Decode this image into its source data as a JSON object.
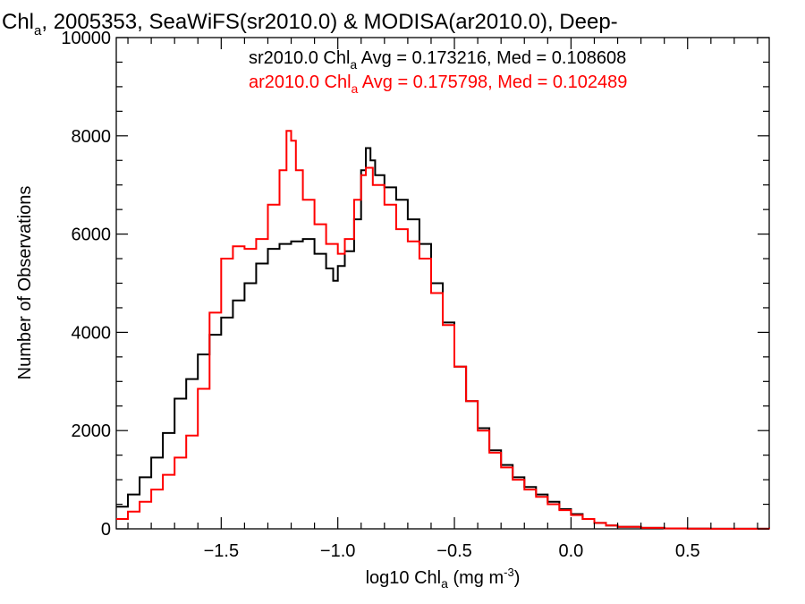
{
  "chart_data": {
    "type": "line",
    "step": true,
    "title": {
      "prefix": "Chl",
      "sub": "a",
      "suffix": ", 2005353, SeaWiFS(sr2010.0) & MODISA(ar2010.0), Deep-"
    },
    "xlabel": {
      "prefix": "log10 Chl",
      "sub": "a",
      "mid": " (mg m",
      "sup": "-3",
      "suffix": ")"
    },
    "ylabel": "Number of Observations",
    "xlim": [
      -1.95,
      0.85
    ],
    "ylim": [
      0,
      10000
    ],
    "xticks": [
      -1.5,
      -1.0,
      -0.5,
      0.0,
      0.5
    ],
    "xtick_labels": [
      "−1.5",
      "−1.0",
      "−0.5",
      "0.0",
      "0.5"
    ],
    "yticks": [
      0,
      2000,
      4000,
      6000,
      8000,
      10000
    ],
    "ytick_labels": [
      "0",
      "2000",
      "4000",
      "6000",
      "8000",
      "10000"
    ],
    "grid": false,
    "legend_position": "top-right",
    "series": [
      {
        "color": "#000000",
        "legend": {
          "prefix": "sr2010.0 Chl",
          "sub": "a",
          "suffix": " Avg = 0.173216, Med = 0.108608"
        },
        "x": [
          -1.95,
          -1.9,
          -1.85,
          -1.8,
          -1.75,
          -1.7,
          -1.65,
          -1.6,
          -1.55,
          -1.5,
          -1.45,
          -1.4,
          -1.35,
          -1.3,
          -1.25,
          -1.2,
          -1.15,
          -1.1,
          -1.05,
          -1.02,
          -1.0,
          -0.97,
          -0.93,
          -0.9,
          -0.88,
          -0.86,
          -0.84,
          -0.8,
          -0.75,
          -0.7,
          -0.65,
          -0.6,
          -0.55,
          -0.5,
          -0.45,
          -0.4,
          -0.35,
          -0.3,
          -0.25,
          -0.2,
          -0.15,
          -0.1,
          -0.05,
          0.0,
          0.05,
          0.1,
          0.15,
          0.2,
          0.3,
          0.4,
          0.5,
          0.6,
          0.7,
          0.85
        ],
        "y": [
          450,
          700,
          1050,
          1450,
          1950,
          2650,
          3050,
          3550,
          3950,
          4300,
          4650,
          5000,
          5400,
          5700,
          5800,
          5850,
          5900,
          5600,
          5300,
          5050,
          5350,
          5650,
          6300,
          7300,
          7750,
          7500,
          7200,
          6950,
          6700,
          6300,
          5800,
          5000,
          4200,
          3300,
          2600,
          2050,
          1600,
          1300,
          1050,
          850,
          700,
          550,
          400,
          300,
          200,
          120,
          70,
          40,
          20,
          10,
          5,
          2,
          1,
          0
        ]
      },
      {
        "color": "#ff0000",
        "legend": {
          "prefix": "ar2010.0 Chl",
          "sub": "a",
          "suffix": " Avg = 0.175798, Med = 0.102489"
        },
        "x": [
          -1.95,
          -1.9,
          -1.85,
          -1.8,
          -1.75,
          -1.7,
          -1.65,
          -1.6,
          -1.55,
          -1.5,
          -1.45,
          -1.4,
          -1.35,
          -1.3,
          -1.25,
          -1.22,
          -1.2,
          -1.18,
          -1.15,
          -1.1,
          -1.05,
          -1.0,
          -0.97,
          -0.93,
          -0.9,
          -0.88,
          -0.85,
          -0.8,
          -0.75,
          -0.7,
          -0.65,
          -0.6,
          -0.55,
          -0.5,
          -0.45,
          -0.4,
          -0.35,
          -0.3,
          -0.25,
          -0.2,
          -0.15,
          -0.1,
          -0.05,
          0.0,
          0.05,
          0.1,
          0.15,
          0.2,
          0.3,
          0.4,
          0.5,
          0.6,
          0.7,
          0.85
        ],
        "y": [
          200,
          350,
          550,
          800,
          1100,
          1450,
          1900,
          2850,
          4400,
          5500,
          5750,
          5700,
          5900,
          6600,
          7300,
          8100,
          7900,
          7300,
          6700,
          6200,
          5800,
          5600,
          5900,
          6700,
          7200,
          7350,
          7000,
          6600,
          6100,
          5850,
          5500,
          4800,
          4150,
          3300,
          2600,
          2000,
          1550,
          1250,
          1000,
          800,
          650,
          500,
          380,
          280,
          200,
          120,
          70,
          40,
          20,
          10,
          5,
          2,
          1,
          0
        ]
      }
    ]
  }
}
